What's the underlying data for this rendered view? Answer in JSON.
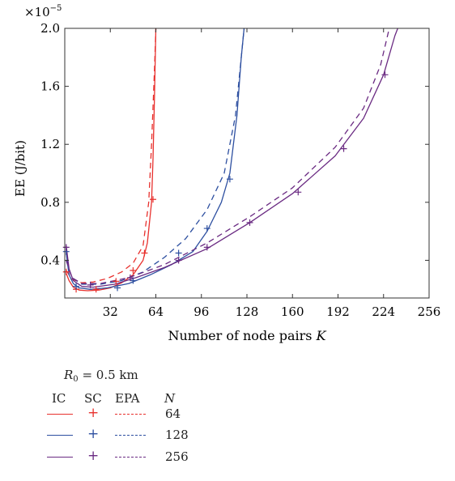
{
  "chart_data": {
    "type": "line",
    "multiplier_label": "×10",
    "multiplier_exp": "−5",
    "ylabel": "EE (J/bit)",
    "xlabel": "Number of node pairs",
    "xlabel_var": "K",
    "xlim": [
      0,
      256
    ],
    "ylim": [
      0.14,
      2.0
    ],
    "x_ticks": [
      32,
      64,
      96,
      128,
      160,
      192,
      224,
      256
    ],
    "x_tick_labels": [
      "32",
      "64",
      "96",
      "128",
      "160",
      "192",
      "224",
      "256"
    ],
    "y_ticks": [
      0.4,
      0.8,
      1.2,
      1.6,
      2.0
    ],
    "y_tick_labels": [
      "0.4",
      "0.8",
      "1.2",
      "1.6",
      "2.0"
    ],
    "grid": false,
    "series": [
      {
        "name": "IC, N = 64",
        "style": "solid",
        "color": "#e8312e",
        "points": [
          [
            1,
            0.31
          ],
          [
            3,
            0.26
          ],
          [
            6,
            0.215
          ],
          [
            10,
            0.195
          ],
          [
            16,
            0.19
          ],
          [
            24,
            0.195
          ],
          [
            32,
            0.21
          ],
          [
            40,
            0.245
          ],
          [
            48,
            0.3
          ],
          [
            55,
            0.4
          ],
          [
            58,
            0.52
          ],
          [
            61,
            0.8
          ],
          [
            62,
            1.1
          ],
          [
            63,
            1.5
          ],
          [
            64,
            2.0
          ]
        ]
      },
      {
        "name": "SC, N = 64",
        "style": "plus",
        "color": "#e8312e",
        "points": [
          [
            1,
            0.32
          ],
          [
            8,
            0.2
          ],
          [
            22,
            0.2
          ],
          [
            36,
            0.255
          ],
          [
            48,
            0.33
          ],
          [
            56,
            0.45
          ],
          [
            62,
            0.82
          ]
        ]
      },
      {
        "name": "EPA, N = 64",
        "style": "dashed",
        "color": "#e8312e",
        "points": [
          [
            1,
            0.33
          ],
          [
            5,
            0.27
          ],
          [
            12,
            0.245
          ],
          [
            20,
            0.25
          ],
          [
            30,
            0.275
          ],
          [
            40,
            0.32
          ],
          [
            48,
            0.38
          ],
          [
            55,
            0.5
          ],
          [
            59,
            0.8
          ],
          [
            61,
            1.2
          ],
          [
            63,
            1.7
          ],
          [
            64,
            2.0
          ]
        ]
      },
      {
        "name": "IC, N = 128",
        "style": "solid",
        "color": "#2d4fa0",
        "points": [
          [
            1,
            0.45
          ],
          [
            3,
            0.3
          ],
          [
            6,
            0.24
          ],
          [
            10,
            0.21
          ],
          [
            18,
            0.2
          ],
          [
            30,
            0.21
          ],
          [
            45,
            0.24
          ],
          [
            60,
            0.3
          ],
          [
            75,
            0.37
          ],
          [
            90,
            0.46
          ],
          [
            100,
            0.6
          ],
          [
            110,
            0.8
          ],
          [
            116,
            1.0
          ],
          [
            121,
            1.4
          ],
          [
            124,
            1.8
          ],
          [
            126,
            2.0
          ]
        ]
      },
      {
        "name": "SC, N = 128",
        "style": "plus",
        "color": "#2d4fa0",
        "points": [
          [
            1,
            0.46
          ],
          [
            8,
            0.22
          ],
          [
            37,
            0.21
          ],
          [
            48,
            0.26
          ],
          [
            80,
            0.45
          ],
          [
            100,
            0.62
          ],
          [
            116,
            0.96
          ]
        ]
      },
      {
        "name": "EPA, N = 128",
        "style": "dashed",
        "color": "#2d4fa0",
        "points": [
          [
            1,
            0.4
          ],
          [
            5,
            0.28
          ],
          [
            12,
            0.235
          ],
          [
            25,
            0.235
          ],
          [
            40,
            0.26
          ],
          [
            55,
            0.32
          ],
          [
            70,
            0.42
          ],
          [
            85,
            0.55
          ],
          [
            100,
            0.75
          ],
          [
            112,
            1.0
          ],
          [
            120,
            1.4
          ],
          [
            124,
            1.8
          ],
          [
            126,
            2.0
          ]
        ]
      },
      {
        "name": "IC, N = 256",
        "style": "solid",
        "color": "#6a2a82",
        "points": [
          [
            1,
            0.5
          ],
          [
            3,
            0.34
          ],
          [
            6,
            0.26
          ],
          [
            12,
            0.22
          ],
          [
            20,
            0.215
          ],
          [
            35,
            0.235
          ],
          [
            50,
            0.28
          ],
          [
            70,
            0.35
          ],
          [
            100,
            0.48
          ],
          [
            130,
            0.66
          ],
          [
            160,
            0.86
          ],
          [
            190,
            1.12
          ],
          [
            210,
            1.38
          ],
          [
            224,
            1.68
          ],
          [
            232,
            1.95
          ],
          [
            234,
            2.0
          ]
        ]
      },
      {
        "name": "SC, N = 256",
        "style": "plus",
        "color": "#6a2a82",
        "points": [
          [
            1,
            0.49
          ],
          [
            18,
            0.23
          ],
          [
            46,
            0.28
          ],
          [
            80,
            0.4
          ],
          [
            100,
            0.49
          ],
          [
            130,
            0.66
          ],
          [
            164,
            0.87
          ],
          [
            196,
            1.17
          ],
          [
            225,
            1.68
          ]
        ]
      },
      {
        "name": "EPA, N = 256",
        "style": "dashed",
        "color": "#6a2a82",
        "points": [
          [
            1,
            0.4
          ],
          [
            5,
            0.28
          ],
          [
            12,
            0.24
          ],
          [
            25,
            0.24
          ],
          [
            45,
            0.28
          ],
          [
            70,
            0.37
          ],
          [
            100,
            0.52
          ],
          [
            130,
            0.7
          ],
          [
            160,
            0.9
          ],
          [
            190,
            1.18
          ],
          [
            210,
            1.45
          ],
          [
            222,
            1.75
          ],
          [
            228,
            2.0
          ]
        ]
      }
    ]
  },
  "legend": {
    "title_r": "R",
    "title_sub": "0",
    "title_rest": " = 0.5 km",
    "col_ic": "IC",
    "col_sc": "SC",
    "col_epa": "EPA",
    "col_n": "N",
    "plus_symbol": "+",
    "rows": [
      {
        "n": "64",
        "color": "#e8312e"
      },
      {
        "n": "128",
        "color": "#2d4fa0"
      },
      {
        "n": "256",
        "color": "#6a2a82"
      }
    ]
  }
}
